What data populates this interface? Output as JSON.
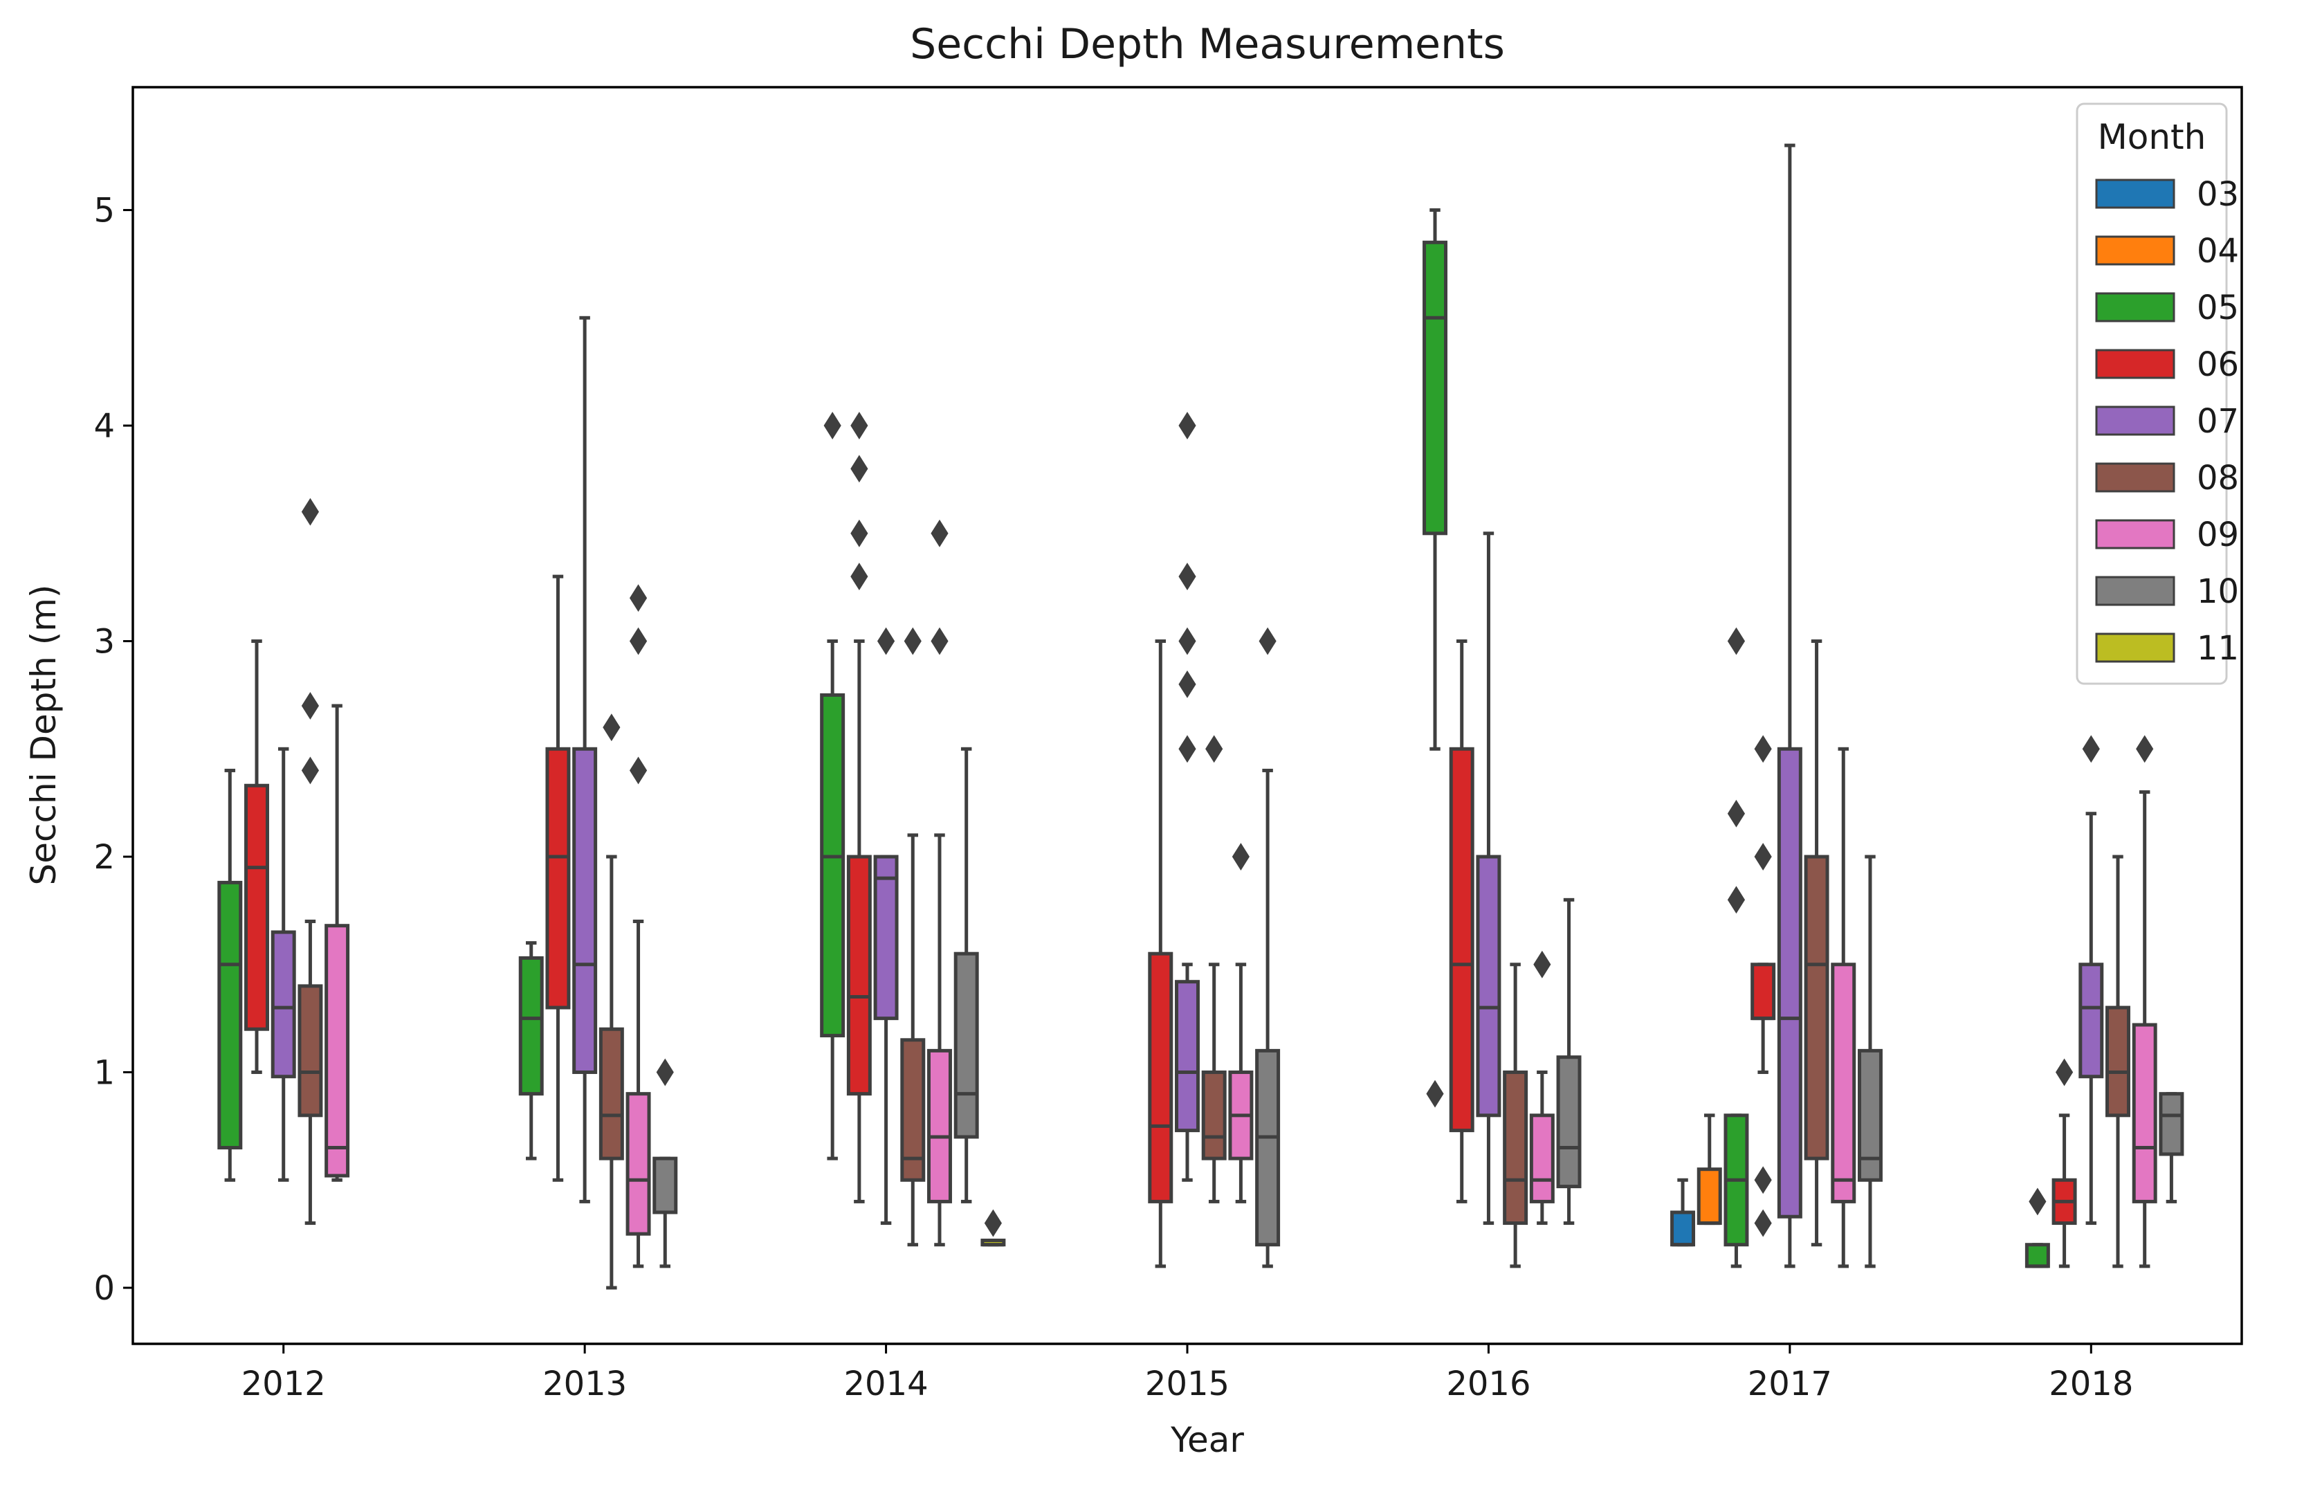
{
  "chart_data": {
    "type": "box",
    "title": "Secchi Depth Measurements",
    "xlabel": "Year",
    "ylabel": "Secchi Depth (m)",
    "ylim": [
      -0.26,
      5.57
    ],
    "yticks": [
      0,
      1,
      2,
      3,
      4,
      5
    ],
    "categories": [
      "2012",
      "2013",
      "2014",
      "2015",
      "2016",
      "2017",
      "2018"
    ],
    "legend": {
      "title": "Month",
      "placement": "upper right",
      "entries": [
        {
          "label": "03",
          "color": "#1f77b4"
        },
        {
          "label": "04",
          "color": "#ff7f0e"
        },
        {
          "label": "05",
          "color": "#2ca02c"
        },
        {
          "label": "06",
          "color": "#d62728"
        },
        {
          "label": "07",
          "color": "#9467bd"
        },
        {
          "label": "08",
          "color": "#8c564b"
        },
        {
          "label": "09",
          "color": "#e377c2"
        },
        {
          "label": "10",
          "color": "#7f7f7f"
        },
        {
          "label": "11",
          "color": "#bcbd22"
        }
      ]
    },
    "boxes": [
      {
        "year": "2012",
        "month": "05",
        "whislo": 0.5,
        "q1": 0.65,
        "med": 1.5,
        "q3": 1.88,
        "whishi": 2.4,
        "fliers": []
      },
      {
        "year": "2012",
        "month": "06",
        "whislo": 1.0,
        "q1": 1.2,
        "med": 1.95,
        "q3": 2.33,
        "whishi": 3.0,
        "fliers": []
      },
      {
        "year": "2012",
        "month": "07",
        "whislo": 0.5,
        "q1": 0.98,
        "med": 1.3,
        "q3": 1.65,
        "whishi": 2.5,
        "fliers": []
      },
      {
        "year": "2012",
        "month": "08",
        "whislo": 0.3,
        "q1": 0.8,
        "med": 1.0,
        "q3": 1.4,
        "whishi": 1.7,
        "fliers": [
          2.4,
          2.7,
          3.6
        ]
      },
      {
        "year": "2012",
        "month": "09",
        "whislo": 0.5,
        "q1": 0.52,
        "med": 0.65,
        "q3": 1.68,
        "whishi": 2.7,
        "fliers": []
      },
      {
        "year": "2013",
        "month": "05",
        "whislo": 0.6,
        "q1": 0.9,
        "med": 1.25,
        "q3": 1.53,
        "whishi": 1.6,
        "fliers": []
      },
      {
        "year": "2013",
        "month": "06",
        "whislo": 0.5,
        "q1": 1.3,
        "med": 2.0,
        "q3": 2.5,
        "whishi": 3.3,
        "fliers": []
      },
      {
        "year": "2013",
        "month": "07",
        "whislo": 0.4,
        "q1": 1.0,
        "med": 1.5,
        "q3": 2.5,
        "whishi": 4.5,
        "fliers": []
      },
      {
        "year": "2013",
        "month": "08",
        "whislo": 0.0,
        "q1": 0.6,
        "med": 0.8,
        "q3": 1.2,
        "whishi": 2.0,
        "fliers": [
          2.6
        ]
      },
      {
        "year": "2013",
        "month": "09",
        "whislo": 0.1,
        "q1": 0.25,
        "med": 0.5,
        "q3": 0.9,
        "whishi": 1.7,
        "fliers": [
          2.4,
          3.0,
          3.2
        ]
      },
      {
        "year": "2013",
        "month": "10",
        "whislo": 0.1,
        "q1": 0.35,
        "med": 0.35,
        "q3": 0.6,
        "whishi": 0.6,
        "fliers": [
          1.0
        ]
      },
      {
        "year": "2014",
        "month": "05",
        "whislo": 0.6,
        "q1": 1.17,
        "med": 2.0,
        "q3": 2.75,
        "whishi": 3.0,
        "fliers": [
          4.0
        ]
      },
      {
        "year": "2014",
        "month": "06",
        "whislo": 0.4,
        "q1": 0.9,
        "med": 1.35,
        "q3": 2.0,
        "whishi": 3.0,
        "fliers": [
          3.3,
          3.5,
          3.8,
          4.0
        ]
      },
      {
        "year": "2014",
        "month": "07",
        "whislo": 0.3,
        "q1": 1.25,
        "med": 1.9,
        "q3": 2.0,
        "whishi": 2.0,
        "fliers": [
          3.0
        ]
      },
      {
        "year": "2014",
        "month": "08",
        "whislo": 0.2,
        "q1": 0.5,
        "med": 0.6,
        "q3": 1.15,
        "whishi": 2.1,
        "fliers": [
          3.0
        ]
      },
      {
        "year": "2014",
        "month": "09",
        "whislo": 0.2,
        "q1": 0.4,
        "med": 0.7,
        "q3": 1.1,
        "whishi": 2.1,
        "fliers": [
          3.0,
          3.5
        ]
      },
      {
        "year": "2014",
        "month": "10",
        "whislo": 0.4,
        "q1": 0.7,
        "med": 0.9,
        "q3": 1.55,
        "whishi": 2.5,
        "fliers": []
      },
      {
        "year": "2014",
        "month": "11",
        "whislo": 0.2,
        "q1": 0.2,
        "med": 0.2,
        "q3": 0.22,
        "whishi": 0.22,
        "fliers": [
          0.3
        ]
      },
      {
        "year": "2015",
        "month": "06",
        "whislo": 0.1,
        "q1": 0.4,
        "med": 0.75,
        "q3": 1.55,
        "whishi": 3.0,
        "fliers": []
      },
      {
        "year": "2015",
        "month": "07",
        "whislo": 0.5,
        "q1": 0.73,
        "med": 1.0,
        "q3": 1.42,
        "whishi": 1.5,
        "fliers": [
          2.5,
          2.8,
          3.0,
          3.3,
          4.0
        ]
      },
      {
        "year": "2015",
        "month": "08",
        "whislo": 0.4,
        "q1": 0.6,
        "med": 0.7,
        "q3": 1.0,
        "whishi": 1.5,
        "fliers": [
          2.5
        ]
      },
      {
        "year": "2015",
        "month": "09",
        "whislo": 0.4,
        "q1": 0.6,
        "med": 0.8,
        "q3": 1.0,
        "whishi": 1.5,
        "fliers": [
          2.0
        ]
      },
      {
        "year": "2015",
        "month": "10",
        "whislo": 0.1,
        "q1": 0.2,
        "med": 0.7,
        "q3": 1.1,
        "whishi": 2.4,
        "fliers": [
          3.0
        ]
      },
      {
        "year": "2016",
        "month": "05",
        "whislo": 2.5,
        "q1": 3.5,
        "med": 4.5,
        "q3": 4.85,
        "whishi": 5.0,
        "fliers": [
          0.9
        ]
      },
      {
        "year": "2016",
        "month": "06",
        "whislo": 0.4,
        "q1": 0.73,
        "med": 1.5,
        "q3": 2.5,
        "whishi": 3.0,
        "fliers": []
      },
      {
        "year": "2016",
        "month": "07",
        "whislo": 0.3,
        "q1": 0.8,
        "med": 1.3,
        "q3": 2.0,
        "whishi": 3.5,
        "fliers": []
      },
      {
        "year": "2016",
        "month": "08",
        "whislo": 0.1,
        "q1": 0.3,
        "med": 0.5,
        "q3": 1.0,
        "whishi": 1.5,
        "fliers": []
      },
      {
        "year": "2016",
        "month": "09",
        "whislo": 0.3,
        "q1": 0.4,
        "med": 0.5,
        "q3": 0.8,
        "whishi": 1.0,
        "fliers": [
          1.5
        ]
      },
      {
        "year": "2016",
        "month": "10",
        "whislo": 0.3,
        "q1": 0.47,
        "med": 0.65,
        "q3": 1.07,
        "whishi": 1.8,
        "fliers": []
      },
      {
        "year": "2017",
        "month": "03",
        "whislo": 0.2,
        "q1": 0.2,
        "med": 0.2,
        "q3": 0.35,
        "whishi": 0.5,
        "fliers": []
      },
      {
        "year": "2017",
        "month": "04",
        "whislo": 0.3,
        "q1": 0.3,
        "med": 0.3,
        "q3": 0.55,
        "whishi": 0.8,
        "fliers": []
      },
      {
        "year": "2017",
        "month": "05",
        "whislo": 0.1,
        "q1": 0.2,
        "med": 0.5,
        "q3": 0.8,
        "whishi": 0.8,
        "fliers": [
          1.8,
          2.2,
          3.0
        ]
      },
      {
        "year": "2017",
        "month": "06",
        "whislo": 1.0,
        "q1": 1.25,
        "med": 1.25,
        "q3": 1.5,
        "whishi": 1.5,
        "fliers": [
          0.3,
          0.5,
          2.0,
          2.5
        ]
      },
      {
        "year": "2017",
        "month": "07",
        "whislo": 0.1,
        "q1": 0.33,
        "med": 1.25,
        "q3": 2.5,
        "whishi": 5.3,
        "fliers": []
      },
      {
        "year": "2017",
        "month": "08",
        "whislo": 0.2,
        "q1": 0.6,
        "med": 1.5,
        "q3": 2.0,
        "whishi": 3.0,
        "fliers": []
      },
      {
        "year": "2017",
        "month": "09",
        "whislo": 0.1,
        "q1": 0.4,
        "med": 0.5,
        "q3": 1.5,
        "whishi": 2.5,
        "fliers": []
      },
      {
        "year": "2017",
        "month": "10",
        "whislo": 0.1,
        "q1": 0.5,
        "med": 0.6,
        "q3": 1.1,
        "whishi": 2.0,
        "fliers": []
      },
      {
        "year": "2018",
        "month": "05",
        "whislo": 0.1,
        "q1": 0.1,
        "med": 0.1,
        "q3": 0.2,
        "whishi": 0.2,
        "fliers": [
          0.4
        ]
      },
      {
        "year": "2018",
        "month": "06",
        "whislo": 0.1,
        "q1": 0.3,
        "med": 0.4,
        "q3": 0.5,
        "whishi": 0.8,
        "fliers": [
          1.0
        ]
      },
      {
        "year": "2018",
        "month": "07",
        "whislo": 0.3,
        "q1": 0.98,
        "med": 1.3,
        "q3": 1.5,
        "whishi": 2.2,
        "fliers": [
          2.5
        ]
      },
      {
        "year": "2018",
        "month": "08",
        "whislo": 0.1,
        "q1": 0.8,
        "med": 1.0,
        "q3": 1.3,
        "whishi": 2.0,
        "fliers": []
      },
      {
        "year": "2018",
        "month": "09",
        "whislo": 0.1,
        "q1": 0.4,
        "med": 0.65,
        "q3": 1.22,
        "whishi": 2.3,
        "fliers": [
          2.5
        ]
      },
      {
        "year": "2018",
        "month": "10",
        "whislo": 0.4,
        "q1": 0.62,
        "med": 0.8,
        "q3": 0.9,
        "whishi": 0.9,
        "fliers": []
      }
    ]
  }
}
